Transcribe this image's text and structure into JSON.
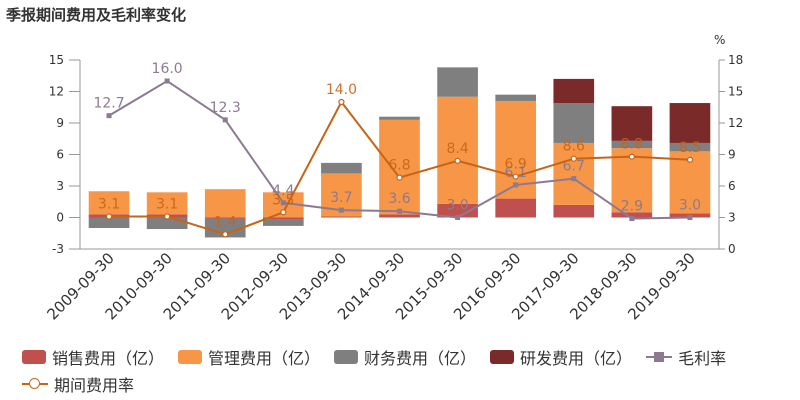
{
  "chart_data": {
    "type": "bar",
    "title": "季报期间费用及毛利率变化",
    "right_axis_unit": "%",
    "categories": [
      "2009-09-30",
      "2010-09-30",
      "2011-09-30",
      "2012-09-30",
      "2013-09-30",
      "2014-09-30",
      "2015-09-30",
      "2016-09-30",
      "2017-09-30",
      "2018-09-30",
      "2019-09-30"
    ],
    "left_axis": {
      "min": -3,
      "max": 15,
      "ticks": [
        "15",
        "12",
        "9",
        "6",
        "3",
        "0",
        "-3"
      ]
    },
    "right_axis": {
      "min": 0,
      "max": 18,
      "ticks": [
        "18",
        "15",
        "12",
        "9",
        "6",
        "3",
        "0"
      ]
    },
    "bar_series": [
      {
        "name": "销售费用（亿）",
        "color": "#c0504d",
        "values": [
          0.3,
          0.3,
          -0.1,
          -0.2,
          0.1,
          0.3,
          1.3,
          1.8,
          1.2,
          0.5,
          0.4
        ]
      },
      {
        "name": "管理费用（亿）",
        "color": "#f79646",
        "values": [
          2.2,
          2.1,
          2.7,
          2.4,
          4.1,
          9.0,
          10.2,
          9.3,
          5.9,
          6.1,
          5.9
        ]
      },
      {
        "name": "财务费用（亿）",
        "color": "#7f7f7f",
        "values": [
          -1.0,
          -1.1,
          -1.8,
          -0.6,
          1.0,
          0.3,
          2.8,
          0.6,
          3.8,
          0.7,
          0.8
        ]
      },
      {
        "name": "研发费用（亿）",
        "color": "#7b2a2a",
        "values": [
          0,
          0,
          0,
          0,
          0,
          0,
          0,
          0,
          2.3,
          3.3,
          3.8
        ]
      }
    ],
    "line_series": [
      {
        "name": "毛利率",
        "color": "#8c7a93",
        "marker": "square",
        "axis": "right",
        "values": [
          12.7,
          16.0,
          12.3,
          4.4,
          3.7,
          3.6,
          3.0,
          6.1,
          6.7,
          2.9,
          3.0
        ],
        "labels": [
          "12.7",
          "16.0",
          "12.3",
          "4.4",
          "3.7",
          "3.6",
          "3.0",
          "6.1",
          "6.7",
          "2.9",
          "3.0"
        ]
      },
      {
        "name": "期间费用率",
        "color": "#c66418",
        "marker": "circle",
        "axis": "right",
        "values": [
          3.1,
          3.1,
          1.4,
          3.5,
          14.0,
          6.8,
          8.4,
          6.9,
          8.6,
          8.8,
          8.5
        ],
        "labels": [
          "3.1",
          "3.1",
          "1.4",
          "3.5",
          "14.0",
          "6.8",
          "8.4",
          "6.9",
          "8.6",
          "8.8",
          "8.5"
        ]
      }
    ]
  }
}
